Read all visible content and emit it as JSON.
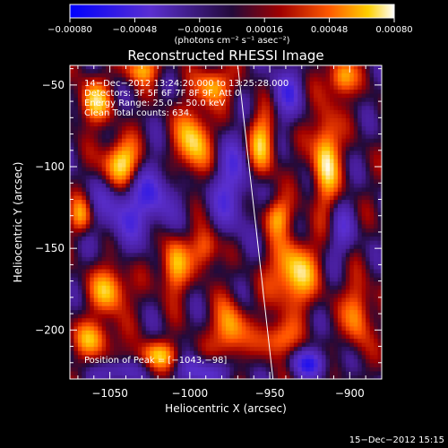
{
  "chart_data": {
    "type": "heatmap",
    "title": "Reconstructed RHESSI Image",
    "xlabel": "Heliocentric X (arcsec)",
    "ylabel": "Heliocentric Y (arcsec)",
    "xlim": [
      -1075,
      -880
    ],
    "ylim": [
      -230,
      -38
    ],
    "x_ticks": [
      {
        "value": -1050,
        "label": "−1050"
      },
      {
        "value": -1000,
        "label": "−1000"
      },
      {
        "value": -950,
        "label": "−950"
      },
      {
        "value": -900,
        "label": "−900"
      }
    ],
    "y_ticks": [
      {
        "value": -50,
        "label": "−50"
      },
      {
        "value": -100,
        "label": "−100"
      },
      {
        "value": -150,
        "label": "−150"
      },
      {
        "value": -200,
        "label": "−200"
      }
    ],
    "colorbar": {
      "min": -0.0008,
      "max": 0.0008,
      "unit_label": "(photons cm⁻² s⁻¹ asec⁻²)",
      "ticks": [
        {
          "value": -0.0008,
          "label": "−0.00080"
        },
        {
          "value": -0.00048,
          "label": "−0.00048"
        },
        {
          "value": -0.00016,
          "label": "−0.00016"
        },
        {
          "value": 0.00016,
          "label": "0.00016"
        },
        {
          "value": 0.00048,
          "label": "0.00048"
        },
        {
          "value": 0.0008,
          "label": "0.00080"
        }
      ]
    },
    "annotations": [
      "14−Dec−2012 13:24:20.000 to 13:25:28.000",
      "Detectors: 3F 5F 6F 7F 8F 9F, Att 0",
      "Energy Range: 25.0 − 50.0 keV",
      "Clean     Total counts: 634."
    ],
    "peak_label": "Position of Peak = [−1043,−98]",
    "peak": [
      -1043,
      -98
    ],
    "limb_line": [
      [
        -970,
        -38
      ],
      [
        -948,
        -230
      ]
    ],
    "bright_sources": [
      {
        "x": -1043,
        "y": -98,
        "amp": 0.0008,
        "sx": 8,
        "sy": 10
      },
      {
        "x": -1060,
        "y": -60,
        "amp": 0.0006,
        "sx": 7,
        "sy": 9
      },
      {
        "x": -1068,
        "y": -130,
        "amp": 0.0005,
        "sx": 5,
        "sy": 8
      },
      {
        "x": -1050,
        "y": -175,
        "amp": 0.0006,
        "sx": 8,
        "sy": 10
      },
      {
        "x": -1060,
        "y": -205,
        "amp": 0.0005,
        "sx": 9,
        "sy": 8
      },
      {
        "x": -1010,
        "y": -160,
        "amp": 0.0006,
        "sx": 6,
        "sy": 12
      },
      {
        "x": -1020,
        "y": -215,
        "amp": 0.0005,
        "sx": 10,
        "sy": 6
      },
      {
        "x": -997,
        "y": -85,
        "amp": 0.0007,
        "sx": 8,
        "sy": 14
      },
      {
        "x": -985,
        "y": -50,
        "amp": 0.0006,
        "sx": 7,
        "sy": 8
      },
      {
        "x": -990,
        "y": -150,
        "amp": 0.0005,
        "sx": 6,
        "sy": 9
      },
      {
        "x": -975,
        "y": -200,
        "amp": 0.0006,
        "sx": 7,
        "sy": 12
      },
      {
        "x": -955,
        "y": -85,
        "amp": 0.0006,
        "sx": 6,
        "sy": 14
      },
      {
        "x": -945,
        "y": -130,
        "amp": 0.0005,
        "sx": 6,
        "sy": 8
      },
      {
        "x": -935,
        "y": -165,
        "amp": 0.0007,
        "sx": 10,
        "sy": 14
      },
      {
        "x": -945,
        "y": -205,
        "amp": 0.0005,
        "sx": 8,
        "sy": 8
      },
      {
        "x": -915,
        "y": -95,
        "amp": 0.0007,
        "sx": 6,
        "sy": 20
      },
      {
        "x": -905,
        "y": -45,
        "amp": 0.0006,
        "sx": 6,
        "sy": 8
      },
      {
        "x": -895,
        "y": -190,
        "amp": 0.0005,
        "sx": 6,
        "sy": 14
      },
      {
        "x": -1030,
        "y": -40,
        "amp": 0.0005,
        "sx": 8,
        "sy": 6
      }
    ],
    "dark_sources": [
      {
        "x": -1040,
        "y": -125,
        "amp": -0.0004,
        "sx": 14,
        "sy": 16
      },
      {
        "x": -975,
        "y": -110,
        "amp": -0.0004,
        "sx": 10,
        "sy": 22
      },
      {
        "x": -1020,
        "y": -115,
        "amp": -0.0003,
        "sx": 9,
        "sy": 14
      },
      {
        "x": -925,
        "y": -220,
        "amp": -0.0005,
        "sx": 9,
        "sy": 6
      },
      {
        "x": -990,
        "y": -225,
        "amp": -0.0004,
        "sx": 12,
        "sy": 6
      },
      {
        "x": -940,
        "y": -55,
        "amp": -0.0004,
        "sx": 7,
        "sy": 12
      },
      {
        "x": -1045,
        "y": -225,
        "amp": -0.0004,
        "sx": 8,
        "sy": 5
      },
      {
        "x": -905,
        "y": -140,
        "amp": -0.0003,
        "sx": 6,
        "sy": 12
      }
    ]
  },
  "footer": {
    "timestamp": "15−Dec−2012 15:15"
  }
}
